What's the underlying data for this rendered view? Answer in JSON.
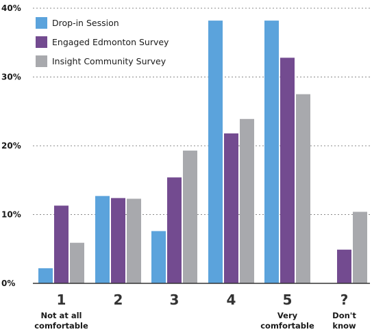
{
  "chart_data": {
    "type": "bar",
    "categories": [
      "1",
      "2",
      "3",
      "4",
      "5",
      "?"
    ],
    "category_sublabels": [
      [
        "Not at all",
        "comfortable"
      ],
      [],
      [],
      [],
      [
        "Very",
        "comfortable"
      ],
      [
        "Don't",
        "know"
      ]
    ],
    "series": [
      {
        "name": "Drop-in Session",
        "color": "#5ba3dc",
        "values": [
          2.2,
          12.7,
          7.6,
          38.2,
          38.2,
          0
        ]
      },
      {
        "name": "Engaged Edmonton Survey",
        "color": "#734b90",
        "values": [
          11.3,
          12.4,
          15.4,
          21.8,
          32.8,
          4.9
        ]
      },
      {
        "name": "Insight Community Survey",
        "color": "#a8a9ad",
        "values": [
          5.9,
          12.3,
          19.3,
          23.9,
          27.5,
          10.4
        ]
      }
    ],
    "yticks": [
      "0%",
      "10%",
      "20%",
      "30%",
      "40%"
    ],
    "ytick_values": [
      0,
      10,
      20,
      30,
      40
    ],
    "ylim": [
      0,
      40
    ],
    "grid": true,
    "legend_position": "top-left"
  }
}
